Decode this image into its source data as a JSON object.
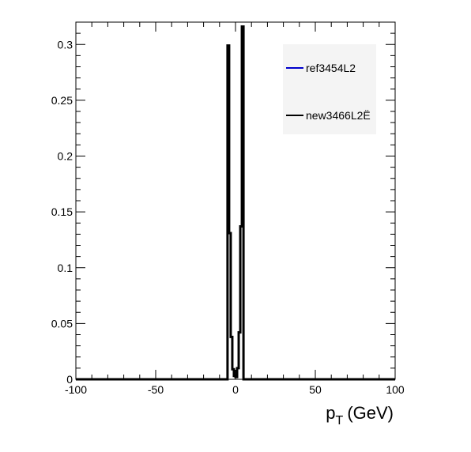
{
  "chart_data": {
    "type": "line",
    "title": "",
    "xlabel_main": "p",
    "xlabel_sub": "T",
    "xlabel_unit": "(GeV)",
    "ylabel": "",
    "xlim": [
      -100,
      100
    ],
    "ylim": [
      0,
      0.32
    ],
    "x_ticks": [
      -100,
      -50,
      0,
      50,
      100
    ],
    "x_tick_labels": [
      "-100",
      "-50",
      "0",
      "50",
      "100"
    ],
    "y_ticks": [
      0,
      0.05,
      0.1,
      0.15,
      0.2,
      0.25,
      0.3
    ],
    "y_tick_labels": [
      "0",
      "0.05",
      "0.1",
      "0.15",
      "0.2",
      "0.25",
      "0.3"
    ],
    "grid": false,
    "legend_position": "top-right",
    "series": [
      {
        "name": "ref3454L2",
        "color": "#0000cc",
        "line_width": 1.5,
        "edges": [
          -100,
          -5,
          -4,
          -3,
          -2,
          -1,
          0,
          1,
          2,
          3,
          4,
          5,
          100
        ],
        "values": [
          0,
          0.299,
          0.131,
          0.038,
          0.009,
          0.003,
          0.002,
          0.01,
          0.042,
          0.137,
          0.316,
          0
        ]
      },
      {
        "name": "new3466L2Ë",
        "color": "#000000",
        "line_width": 3,
        "edges": [
          -100,
          -5,
          -4,
          -3,
          -2,
          -1,
          0,
          1,
          2,
          3,
          4,
          5,
          100
        ],
        "values": [
          0,
          0.299,
          0.131,
          0.038,
          0.009,
          0.003,
          0.002,
          0.01,
          0.042,
          0.137,
          0.316,
          0
        ]
      }
    ]
  }
}
